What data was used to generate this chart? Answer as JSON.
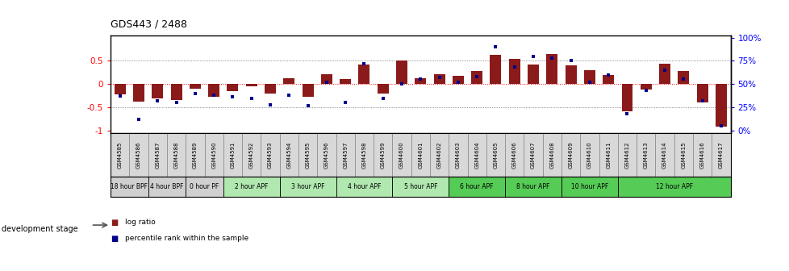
{
  "title": "GDS443 / 2488",
  "samples": [
    "GSM4585",
    "GSM4586",
    "GSM4587",
    "GSM4588",
    "GSM4589",
    "GSM4590",
    "GSM4591",
    "GSM4592",
    "GSM4593",
    "GSM4594",
    "GSM4595",
    "GSM4596",
    "GSM4597",
    "GSM4598",
    "GSM4599",
    "GSM4600",
    "GSM4601",
    "GSM4602",
    "GSM4603",
    "GSM4604",
    "GSM4605",
    "GSM4606",
    "GSM4607",
    "GSM4608",
    "GSM4609",
    "GSM4610",
    "GSM4611",
    "GSM4612",
    "GSM4613",
    "GSM4614",
    "GSM4615",
    "GSM4616",
    "GSM4617"
  ],
  "log_ratios": [
    -0.22,
    -0.38,
    -0.3,
    -0.35,
    -0.1,
    -0.28,
    -0.15,
    -0.05,
    -0.2,
    0.12,
    -0.28,
    0.22,
    0.1,
    0.42,
    -0.2,
    0.5,
    0.13,
    0.22,
    0.18,
    0.28,
    0.62,
    0.55,
    0.42,
    0.64,
    0.4,
    0.3,
    0.2,
    -0.58,
    -0.12,
    0.44,
    0.28,
    -0.4,
    -0.92
  ],
  "percentile_ranks": [
    37,
    12,
    32,
    30,
    40,
    38,
    36,
    35,
    28,
    38,
    27,
    52,
    30,
    72,
    35,
    50,
    55,
    57,
    52,
    58,
    90,
    68,
    80,
    78,
    75,
    52,
    60,
    18,
    43,
    65,
    55,
    32,
    5
  ],
  "stages": [
    {
      "label": "18 hour BPF",
      "start": 0,
      "end": 2,
      "color": "#d0d0d0"
    },
    {
      "label": "4 hour BPF",
      "start": 2,
      "end": 4,
      "color": "#d0d0d0"
    },
    {
      "label": "0 hour PF",
      "start": 4,
      "end": 6,
      "color": "#d0d0d0"
    },
    {
      "label": "2 hour APF",
      "start": 6,
      "end": 9,
      "color": "#b0e8b0"
    },
    {
      "label": "3 hour APF",
      "start": 9,
      "end": 12,
      "color": "#b0e8b0"
    },
    {
      "label": "4 hour APF",
      "start": 12,
      "end": 15,
      "color": "#b0e8b0"
    },
    {
      "label": "5 hour APF",
      "start": 15,
      "end": 18,
      "color": "#b0e8b0"
    },
    {
      "label": "6 hour APF",
      "start": 18,
      "end": 21,
      "color": "#55cc55"
    },
    {
      "label": "8 hour APF",
      "start": 21,
      "end": 24,
      "color": "#55cc55"
    },
    {
      "label": "10 hour APF",
      "start": 24,
      "end": 27,
      "color": "#55cc55"
    },
    {
      "label": "12 hour APF",
      "start": 27,
      "end": 33,
      "color": "#55cc55"
    }
  ],
  "bar_color": "#8B1A1A",
  "dot_color": "#00008B",
  "ylim": [
    -1.05,
    1.05
  ],
  "left_yticks": [
    -1.0,
    -0.5,
    0.0,
    0.5
  ],
  "left_yticklabels": [
    "-1",
    "-0.5",
    "0",
    "0.5"
  ],
  "right_ytick_pcts": [
    0,
    25,
    50,
    75,
    100
  ],
  "right_yticklabels": [
    "0%",
    "25%",
    "50%",
    "75%",
    "100%"
  ],
  "hline_zero": {
    "color": "red",
    "lw": 0.7,
    "ls": "dotted"
  },
  "hline_half": {
    "color": "#666666",
    "lw": 0.6,
    "ls": "dotted"
  },
  "legend_items": [
    "log ratio",
    "percentile rank within the sample"
  ],
  "legend_colors": [
    "#8B1A1A",
    "#00008B"
  ],
  "dev_stage_label": "development stage",
  "bg_color": "#ffffff",
  "label_bg_color": "#d8d8d8",
  "label_border_color": "#888888"
}
